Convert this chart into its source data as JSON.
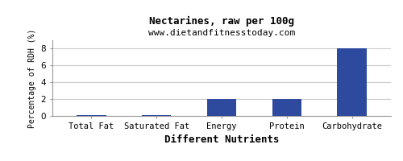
{
  "title": "Nectarines, raw per 100g",
  "subtitle": "www.dietandfitnesstoday.com",
  "xlabel": "Different Nutrients",
  "ylabel": "Percentage of RDH (%)",
  "categories": [
    "Total Fat",
    "Saturated Fat",
    "Energy",
    "Protein",
    "Carbohydrate"
  ],
  "values": [
    0.05,
    0.05,
    2.0,
    2.0,
    8.0
  ],
  "bar_color": "#2e4a9e",
  "ylim": [
    0,
    9
  ],
  "yticks": [
    0,
    2,
    4,
    6,
    8
  ],
  "background_color": "#ffffff",
  "plot_bg_color": "#ffffff",
  "title_fontsize": 9,
  "subtitle_fontsize": 8,
  "xlabel_fontsize": 9,
  "ylabel_fontsize": 7,
  "tick_fontsize": 7.5,
  "grid_color": "#cccccc",
  "spine_color": "#999999"
}
